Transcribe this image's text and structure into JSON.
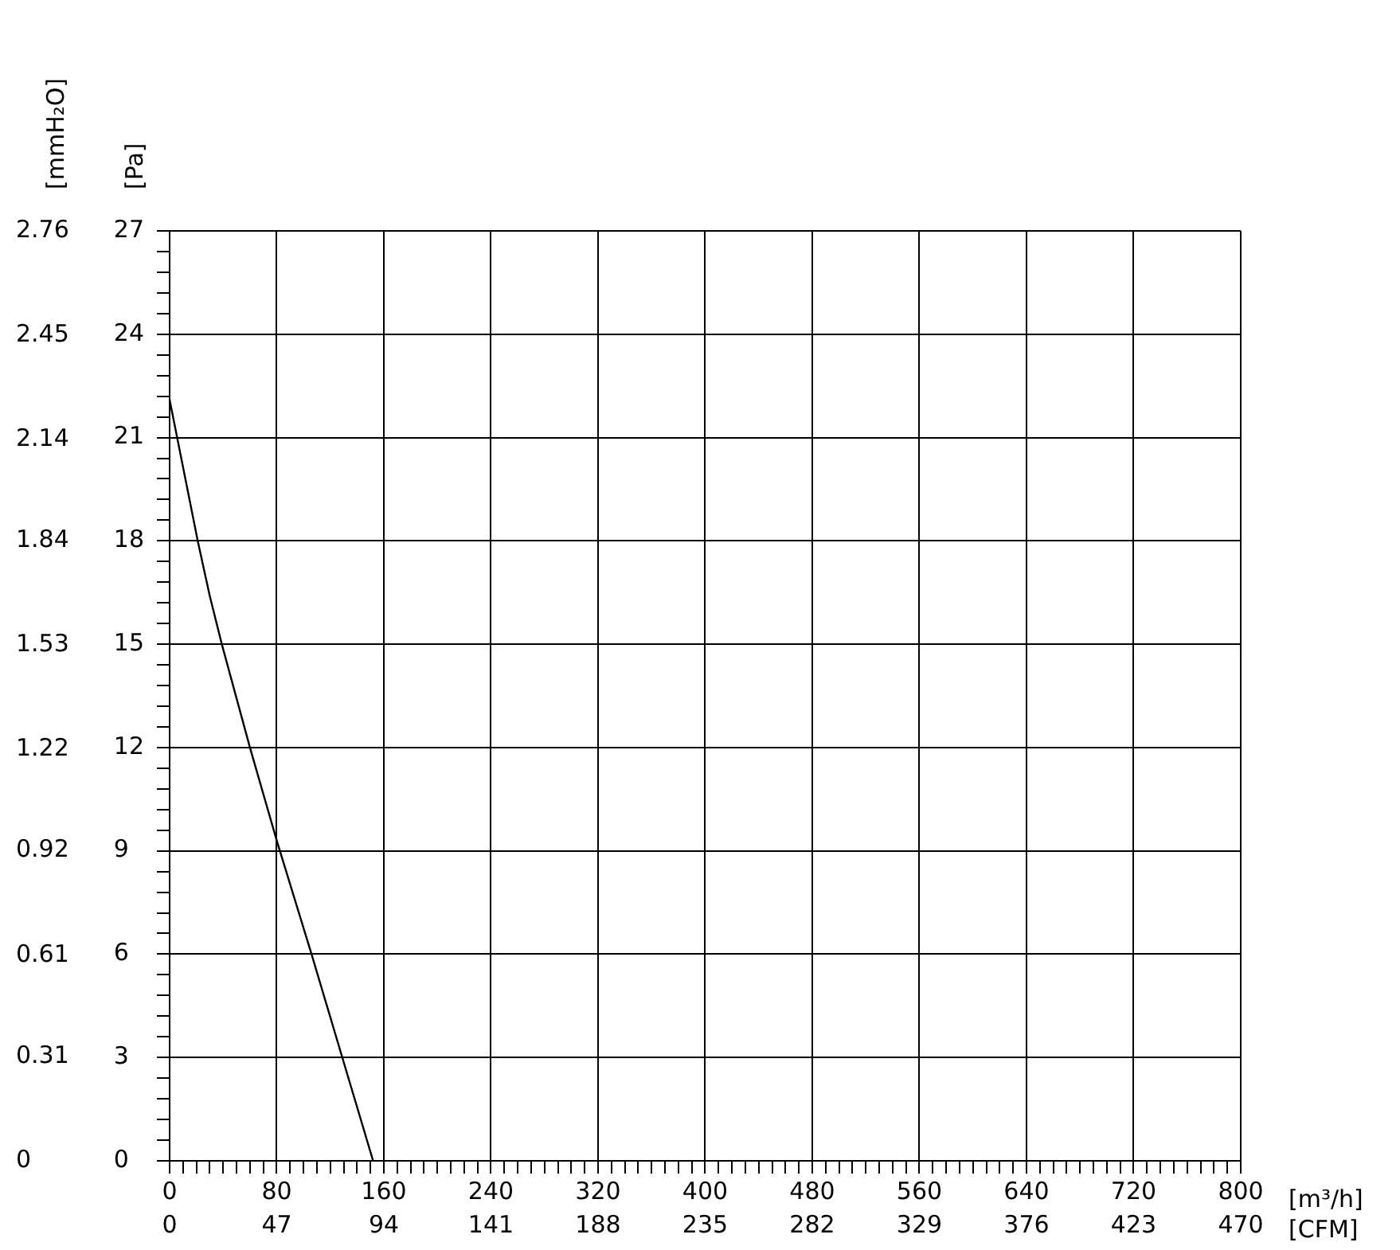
{
  "chart_data": {
    "type": "line",
    "xlabel": "[m³/h]",
    "x2label": "[CFM]",
    "ylabel": "[Pa]",
    "y2label": "[mmH₂O]",
    "x": [
      0,
      21,
      30,
      39,
      60,
      80,
      106,
      129,
      152
    ],
    "series": [
      {
        "color": "#000000",
        "values": [
          22.1,
          18,
          16.4,
          15,
          12,
          9.3,
          6,
          3,
          0
        ]
      }
    ],
    "xlim": [
      0,
      800
    ],
    "xticks": [
      0,
      {
        "value": 10,
        "label": null
      },
      {
        "value": 20,
        "label": null
      },
      {
        "value": 30,
        "label": null
      },
      {
        "value": 40,
        "label": null
      },
      {
        "value": 50,
        "label": null
      },
      {
        "value": 60,
        "label": null
      },
      {
        "value": 70,
        "label": null
      },
      80,
      {
        "value": 90,
        "label": null
      },
      {
        "value": 100,
        "label": null
      },
      {
        "value": 110,
        "label": null
      },
      {
        "value": 120,
        "label": null
      },
      {
        "value": 130,
        "label": null
      },
      {
        "value": 140,
        "label": null
      },
      {
        "value": 150,
        "label": null
      },
      160,
      {
        "value": 170,
        "label": null
      },
      {
        "value": 180,
        "label": null
      },
      {
        "value": 190,
        "label": null
      },
      {
        "value": 200,
        "label": null
      },
      {
        "value": 210,
        "label": null
      },
      {
        "value": 220,
        "label": null
      },
      {
        "value": 230,
        "label": null
      },
      240,
      {
        "value": 250,
        "label": null
      },
      {
        "value": 260,
        "label": null
      },
      {
        "value": 270,
        "label": null
      },
      {
        "value": 280,
        "label": null
      },
      {
        "value": 290,
        "label": null
      },
      {
        "value": 300,
        "label": null
      },
      {
        "value": 310,
        "label": null
      },
      320,
      {
        "value": 330,
        "label": null
      },
      {
        "value": 340,
        "label": null
      },
      {
        "value": 350,
        "label": null
      },
      {
        "value": 360,
        "label": null
      },
      {
        "value": 370,
        "label": null
      },
      {
        "value": 380,
        "label": null
      },
      {
        "value": 390,
        "label": null
      },
      400,
      {
        "value": 410,
        "label": null
      },
      {
        "value": 420,
        "label": null
      },
      {
        "value": 430,
        "label": null
      },
      {
        "value": 440,
        "label": null
      },
      {
        "value": 450,
        "label": null
      },
      {
        "value": 460,
        "label": null
      },
      {
        "value": 470,
        "label": null
      },
      480,
      {
        "value": 490,
        "label": null
      },
      {
        "value": 500,
        "label": null
      },
      {
        "value": 510,
        "label": null
      },
      {
        "value": 520,
        "label": null
      },
      {
        "value": 530,
        "label": null
      },
      {
        "value": 540,
        "label": null
      },
      {
        "value": 550,
        "label": null
      },
      560,
      {
        "value": 570,
        "label": null
      },
      {
        "value": 580,
        "label": null
      },
      {
        "value": 590,
        "label": null
      },
      {
        "value": 600,
        "label": null
      },
      {
        "value": 610,
        "label": null
      },
      {
        "value": 620,
        "label": null
      },
      {
        "value": 630,
        "label": null
      },
      640,
      {
        "value": 650,
        "label": null
      },
      {
        "value": 660,
        "label": null
      },
      {
        "value": 670,
        "label": null
      },
      {
        "value": 680,
        "label": null
      },
      {
        "value": 690,
        "label": null
      },
      {
        "value": 700,
        "label": null
      },
      {
        "value": 710,
        "label": null
      },
      720,
      {
        "value": 730,
        "label": null
      },
      {
        "value": 740,
        "label": null
      },
      {
        "value": 750,
        "label": null
      },
      {
        "value": 760,
        "label": null
      },
      {
        "value": 770,
        "label": null
      },
      {
        "value": 780,
        "label": null
      },
      {
        "value": 790,
        "label": null
      },
      800
    ],
    "x2lim": [
      0,
      470
    ],
    "x2ticks": [
      0,
      47,
      94,
      141,
      188,
      235,
      282,
      329,
      376,
      423,
      470
    ],
    "ylim": [
      0,
      27
    ],
    "yticks": [
      0,
      {
        "value": 0.6,
        "label": null
      },
      {
        "value": 1.2,
        "label": null
      },
      {
        "value": 1.8,
        "label": null
      },
      {
        "value": 2.4,
        "label": null
      },
      3,
      {
        "value": 3.6,
        "label": null
      },
      {
        "value": 4.2,
        "label": null
      },
      {
        "value": 4.8,
        "label": null
      },
      {
        "value": 5.4,
        "label": null
      },
      6,
      {
        "value": 6.6,
        "label": null
      },
      {
        "value": 7.2,
        "label": null
      },
      {
        "value": 7.8,
        "label": null
      },
      {
        "value": 8.4,
        "label": null
      },
      9,
      {
        "value": 9.6,
        "label": null
      },
      {
        "value": 10.2,
        "label": null
      },
      {
        "value": 10.8,
        "label": null
      },
      {
        "value": 11.4,
        "label": null
      },
      12,
      {
        "value": 12.6,
        "label": null
      },
      {
        "value": 13.2,
        "label": null
      },
      {
        "value": 13.8,
        "label": null
      },
      {
        "value": 14.4,
        "label": null
      },
      15,
      {
        "value": 15.6,
        "label": null
      },
      {
        "value": 16.2,
        "label": null
      },
      {
        "value": 16.8,
        "label": null
      },
      {
        "value": 17.4,
        "label": null
      },
      18,
      {
        "value": 18.6,
        "label": null
      },
      {
        "value": 19.2,
        "label": null
      },
      {
        "value": 19.8,
        "label": null
      },
      {
        "value": 20.4,
        "label": null
      },
      21,
      {
        "value": 21.6,
        "label": null
      },
      {
        "value": 22.2,
        "label": null
      },
      {
        "value": 22.8,
        "label": null
      },
      {
        "value": 23.4,
        "label": null
      },
      24,
      {
        "value": 24.6,
        "label": null
      },
      {
        "value": 25.2,
        "label": null
      },
      {
        "value": 25.8,
        "label": null
      },
      {
        "value": 26.4,
        "label": null
      },
      27
    ],
    "y2lim": [
      0,
      2.76
    ],
    "y2ticks": [
      0,
      0.31,
      0.61,
      0.92,
      1.22,
      1.53,
      1.84,
      2.14,
      2.45,
      2.76
    ],
    "grid": true,
    "legend": false,
    "line_style": "solid",
    "marker": "none"
  }
}
